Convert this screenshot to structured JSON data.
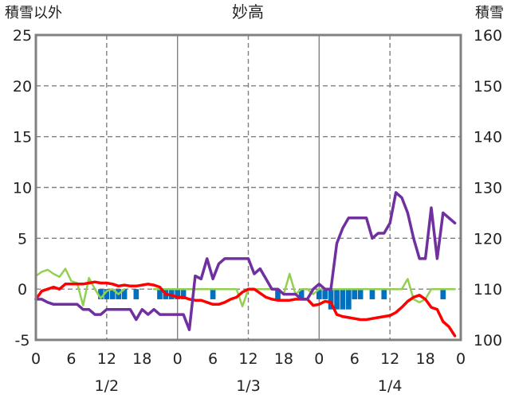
{
  "chart_data": {
    "type": "bar",
    "title": "妙高",
    "ylabel_left": "積雪以外",
    "ylabel_right": "積雪",
    "ylim_left": [
      -5,
      25
    ],
    "ylim_right": [
      100,
      160
    ],
    "yticks_left": [
      "25",
      "20",
      "15",
      "10",
      "5",
      "0",
      "-5"
    ],
    "yticks_right": [
      "160",
      "150",
      "140",
      "130",
      "120",
      "110",
      "100"
    ],
    "xticks": [
      "0",
      "6",
      "12",
      "18",
      "0",
      "6",
      "12",
      "18",
      "0",
      "6",
      "12",
      "18",
      "0"
    ],
    "day_labels": [
      "1/2",
      "1/3",
      "1/4"
    ],
    "x_hours": [
      0,
      1,
      2,
      3,
      4,
      5,
      6,
      7,
      8,
      9,
      10,
      11,
      12,
      13,
      14,
      15,
      16,
      17,
      18,
      19,
      20,
      21,
      22,
      23,
      24,
      25,
      26,
      27,
      28,
      29,
      30,
      31,
      32,
      33,
      34,
      35,
      36,
      37,
      38,
      39,
      40,
      41,
      42,
      43,
      44,
      45,
      46,
      47,
      48,
      49,
      50,
      51,
      52,
      53,
      54,
      55,
      56,
      57,
      58,
      59,
      60,
      61,
      62,
      63,
      64,
      65,
      66,
      67,
      68,
      69,
      70,
      71
    ],
    "series": [
      {
        "axis": "left",
        "style": "line",
        "color": "#ff0000",
        "values": [
          -1.0,
          -0.2,
          0.0,
          0.2,
          0.0,
          0.5,
          0.5,
          0.5,
          0.5,
          0.6,
          0.7,
          0.6,
          0.6,
          0.5,
          0.3,
          0.4,
          0.3,
          0.3,
          0.4,
          0.5,
          0.4,
          0.2,
          -0.5,
          -0.6,
          -0.8,
          -0.8,
          -1.0,
          -1.1,
          -1.1,
          -1.3,
          -1.5,
          -1.5,
          -1.3,
          -1.0,
          -0.8,
          -0.3,
          0.0,
          0.0,
          -0.4,
          -0.8,
          -1.0,
          -1.1,
          -1.1,
          -1.1,
          -1.0,
          -1.0,
          -1.0,
          -1.6,
          -1.5,
          -1.2,
          -1.3,
          -2.5,
          -2.7,
          -2.8,
          -2.9,
          -3.0,
          -3.0,
          -2.9,
          -2.8,
          -2.7,
          -2.6,
          -2.3,
          -1.8,
          -1.2,
          -0.8,
          -0.6,
          -1.0,
          -1.8,
          -2.0,
          -3.2,
          -3.7,
          -4.6
        ]
      },
      {
        "axis": "left",
        "style": "line",
        "color": "#7030a0",
        "values": [
          -1.0,
          -1.0,
          -1.3,
          -1.5,
          -1.5,
          -1.5,
          -1.5,
          -1.5,
          -2.0,
          -2.0,
          -2.5,
          -2.5,
          -2.0,
          -2.0,
          -2.0,
          -2.0,
          -2.0,
          -3.0,
          -2.0,
          -2.5,
          -2.0,
          -2.5,
          -2.5,
          -2.5,
          -2.5,
          -2.5,
          -4.0,
          1.3,
          1.0,
          3.0,
          1.0,
          2.5,
          3.0,
          3.0,
          3.0,
          3.0,
          3.0,
          1.5,
          2.0,
          1.0,
          0.0,
          0.0,
          -0.5,
          -0.5,
          -0.5,
          -1.0,
          -1.0,
          0.0,
          0.5,
          0.0,
          0.0,
          4.5,
          6.0,
          7.0,
          7.0,
          7.0,
          7.0,
          5.0,
          5.5,
          5.5,
          6.5,
          9.5,
          9.0,
          7.5,
          5.0,
          3.0,
          3.0,
          8.0,
          3.0,
          7.5,
          7.0,
          6.5
        ]
      },
      {
        "axis": "left",
        "style": "line",
        "color": "#92d050",
        "values": [
          1.3,
          1.7,
          1.9,
          1.5,
          1.2,
          2.0,
          0.8,
          0.6,
          -1.6,
          1.1,
          0.0,
          -0.9,
          -0.2,
          0.0,
          -0.5,
          0.0,
          null,
          null,
          null,
          null,
          0.0,
          0.0,
          0.0,
          0.0,
          0.0,
          0.0,
          0.0,
          0.0,
          0.0,
          0.0,
          0.0,
          0.0,
          0.0,
          0.0,
          0.0,
          -1.7,
          0.0,
          0.0,
          0.0,
          0.0,
          0.0,
          0.0,
          -0.5,
          1.5,
          -0.5,
          0.0,
          0.0,
          -0.5,
          0.0,
          0.0,
          0.0,
          0.0,
          0.0,
          0.0,
          0.0,
          0.0,
          0.0,
          0.0,
          0.0,
          0.0,
          0.0,
          0.0,
          0.0,
          1.0,
          -1.0,
          -1.3,
          -1.0,
          0.0,
          0.0,
          0.0,
          0.0,
          0.0
        ]
      },
      {
        "axis": "left",
        "style": "bar",
        "color": "#0070c0",
        "values": [
          0,
          0,
          0,
          0,
          0,
          0,
          0,
          0,
          0,
          0,
          0,
          -1,
          -1,
          -1,
          -1,
          -1,
          0,
          -1,
          0,
          0,
          0,
          -1,
          -1,
          -1,
          -1,
          -1,
          0,
          0,
          0,
          0,
          -1,
          0,
          0,
          0,
          0,
          0,
          0,
          0,
          0,
          0,
          0,
          -1,
          0,
          0,
          0,
          -1,
          0,
          0,
          -1,
          -1,
          -2,
          -2,
          -2,
          -2,
          -1,
          -1,
          0,
          -1,
          0,
          -1,
          0,
          0,
          0,
          0,
          0,
          0,
          0,
          0,
          0,
          -1,
          0,
          0
        ]
      }
    ]
  }
}
